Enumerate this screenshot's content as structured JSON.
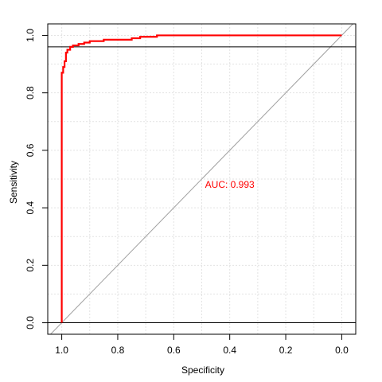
{
  "chart_data": {
    "type": "line",
    "title": "",
    "xlabel": "Specificity",
    "ylabel": "Sensitivity",
    "xlim": [
      1.05,
      -0.05
    ],
    "ylim": [
      -0.04,
      1.04
    ],
    "x_reversed": true,
    "xticks": [
      1.0,
      0.8,
      0.6,
      0.4,
      0.2,
      0.0
    ],
    "xtick_labels": [
      "1.0",
      "0.8",
      "0.6",
      "0.4",
      "0.2",
      "0.0"
    ],
    "yticks": [
      0.0,
      0.2,
      0.4,
      0.6,
      0.8,
      1.0
    ],
    "ytick_labels": [
      "0.0",
      "0.2",
      "0.4",
      "0.6",
      "0.8",
      "1.0"
    ],
    "grid": true,
    "grid_x_step": 0.1,
    "grid_y_step": 0.1,
    "reference_hlines": [
      0.0,
      0.96
    ],
    "diagonal": true,
    "annotation": {
      "text": "AUC: 0.993",
      "x": 0.4,
      "y": 0.48,
      "color": "#ff0000"
    },
    "series": [
      {
        "color": "#ff0000",
        "points": [
          [
            1.0,
            0.0
          ],
          [
            1.0,
            0.87
          ],
          [
            0.995,
            0.87
          ],
          [
            0.995,
            0.89
          ],
          [
            0.99,
            0.89
          ],
          [
            0.99,
            0.91
          ],
          [
            0.985,
            0.91
          ],
          [
            0.985,
            0.94
          ],
          [
            0.98,
            0.94
          ],
          [
            0.98,
            0.95
          ],
          [
            0.97,
            0.95
          ],
          [
            0.97,
            0.96
          ],
          [
            0.96,
            0.96
          ],
          [
            0.96,
            0.965
          ],
          [
            0.94,
            0.965
          ],
          [
            0.94,
            0.97
          ],
          [
            0.92,
            0.97
          ],
          [
            0.92,
            0.975
          ],
          [
            0.9,
            0.975
          ],
          [
            0.9,
            0.98
          ],
          [
            0.85,
            0.98
          ],
          [
            0.85,
            0.985
          ],
          [
            0.8,
            0.985
          ],
          [
            0.75,
            0.985
          ],
          [
            0.75,
            0.99
          ],
          [
            0.72,
            0.99
          ],
          [
            0.72,
            0.995
          ],
          [
            0.66,
            0.995
          ],
          [
            0.66,
            1.0
          ],
          [
            0.0,
            1.0
          ]
        ]
      }
    ],
    "colors": {
      "diagonal": "#a0a0a0",
      "grid": "#e3e3e3",
      "frame": "#000000"
    }
  }
}
